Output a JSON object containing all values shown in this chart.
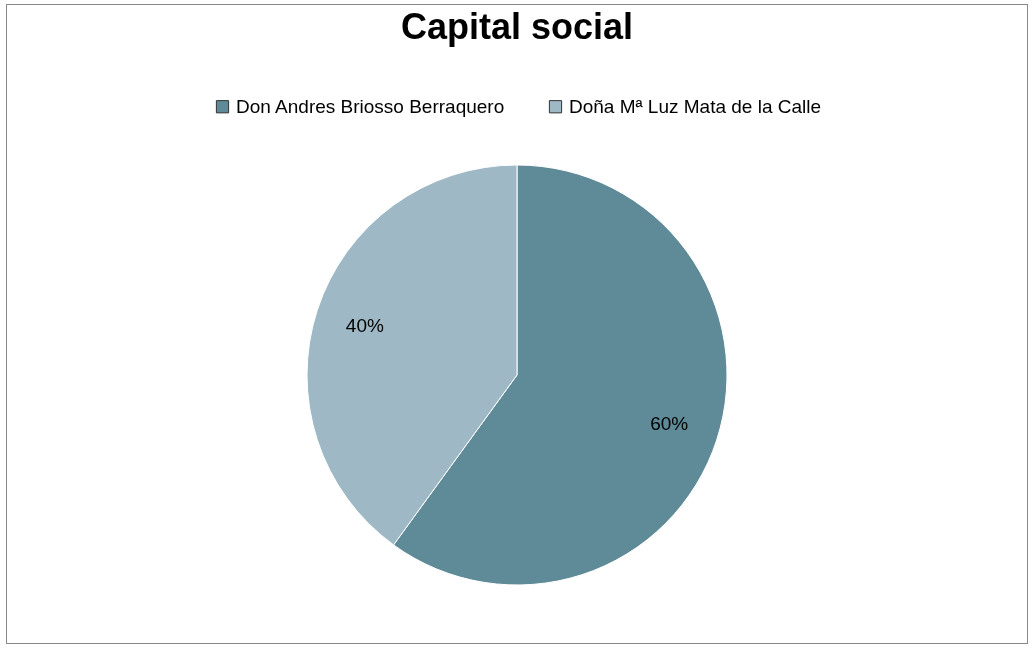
{
  "chart_data": {
    "type": "pie",
    "title": "Capital social",
    "categories": [
      "Don Andres Briosso Berraquero",
      "Doña Mª Luz Mata de la Calle"
    ],
    "values": [
      60,
      40
    ],
    "colors": [
      "#5f8b99",
      "#9eb9c5"
    ],
    "value_labels": [
      "60%",
      "40%"
    ],
    "legend": "top"
  }
}
